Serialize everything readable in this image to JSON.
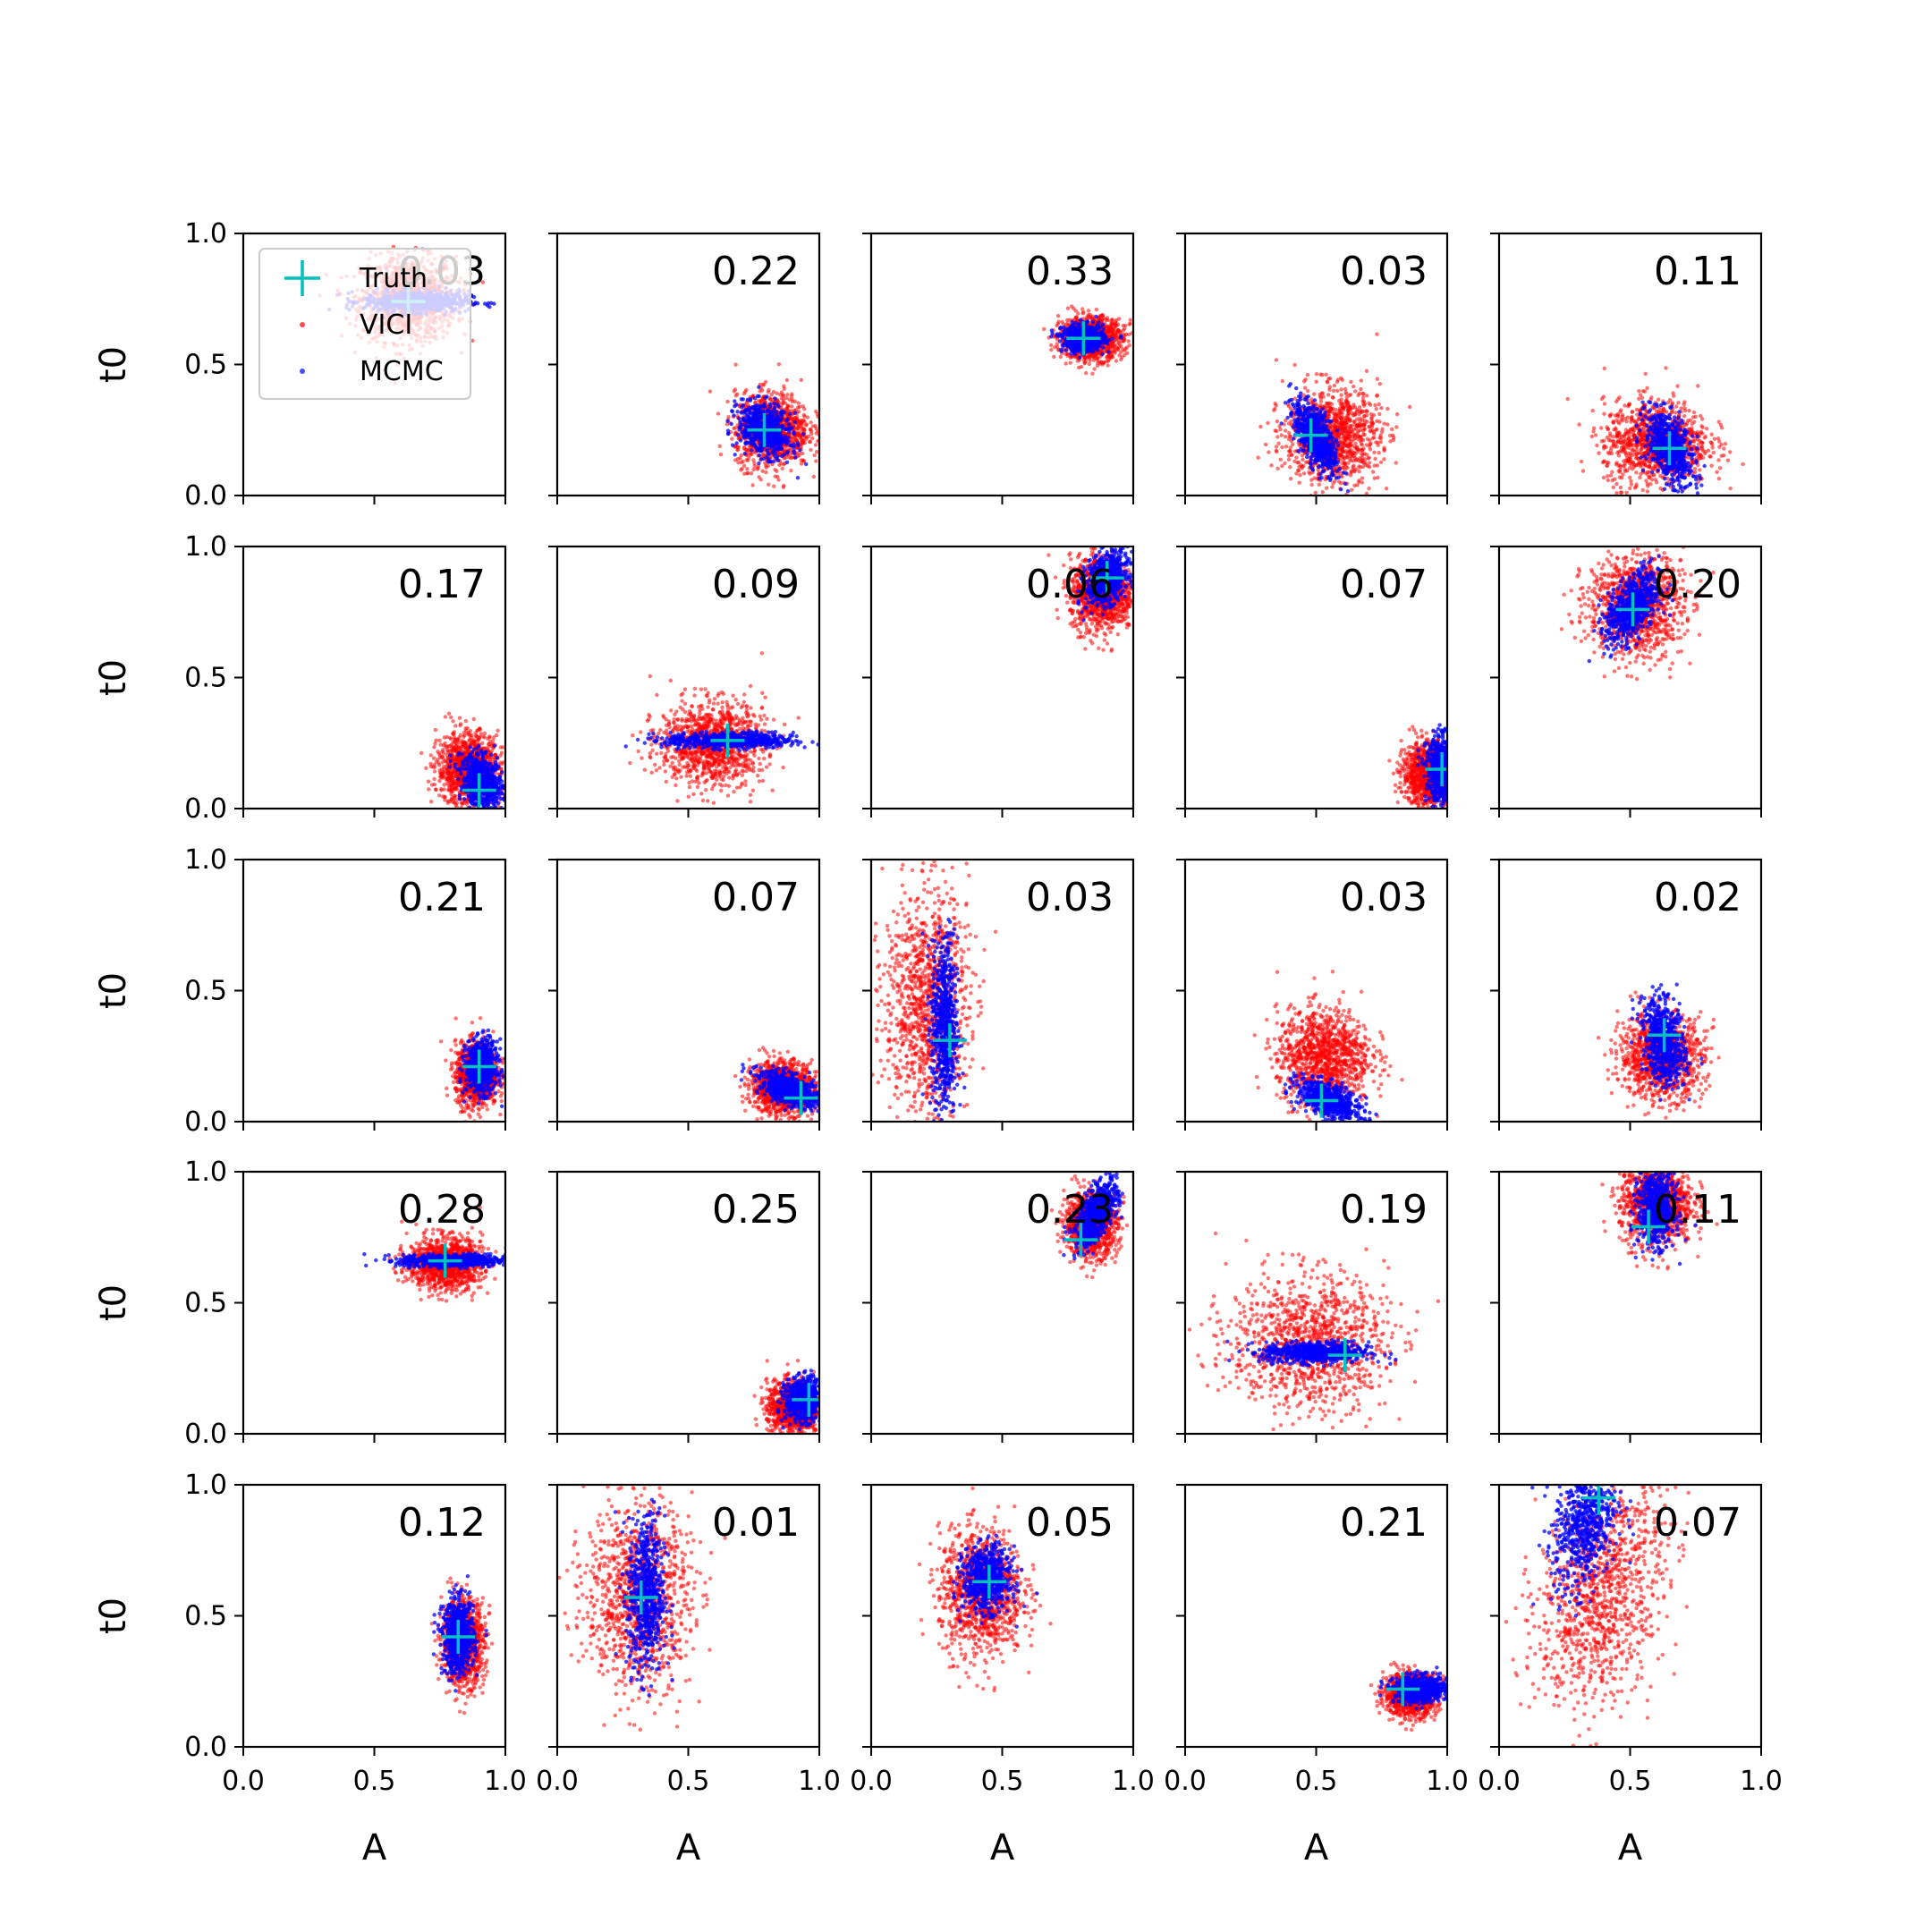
{
  "chart_data": {
    "type": "scatter",
    "layout": "5x5 grid of small-multiple scatter panels",
    "xlabel": "A",
    "ylabel": "t0",
    "xlim": [
      0.0,
      1.0
    ],
    "ylim": [
      0.0,
      1.0
    ],
    "xticks": [
      "0.0",
      "0.5",
      "1.0"
    ],
    "yticks": [
      "0.0",
      "0.5",
      "1.0"
    ],
    "legend": {
      "placement": "top-left (first panel)",
      "entries": [
        {
          "label": "Truth",
          "marker": "plus",
          "color": "#00bfbf"
        },
        {
          "label": "VICI",
          "marker": "dot",
          "color": "#ff0000"
        },
        {
          "label": "MCMC",
          "marker": "dot",
          "color": "#0000ff"
        }
      ]
    },
    "colors": {
      "vici": "#ff0000",
      "mcmc": "#0000ff",
      "truth": "#00bfbf"
    },
    "panels": [
      {
        "kl": "0.03",
        "truth": [
          0.63,
          0.74
        ],
        "vici": {
          "cx": 0.63,
          "cy": 0.75,
          "sx": 0.09,
          "sy": 0.08,
          "rho": 0.0
        },
        "mcmc": {
          "cx": 0.66,
          "cy": 0.74,
          "sx": 0.1,
          "sy": 0.02,
          "rho": 0.0
        }
      },
      {
        "kl": "0.22",
        "truth": [
          0.79,
          0.25
        ],
        "vici": {
          "cx": 0.82,
          "cy": 0.25,
          "sx": 0.07,
          "sy": 0.07,
          "rho": 0.0
        },
        "mcmc": {
          "cx": 0.79,
          "cy": 0.25,
          "sx": 0.05,
          "sy": 0.05,
          "rho": -0.3
        }
      },
      {
        "kl": "0.33",
        "truth": [
          0.81,
          0.6
        ],
        "vici": {
          "cx": 0.84,
          "cy": 0.6,
          "sx": 0.06,
          "sy": 0.04,
          "rho": 0.0
        },
        "mcmc": {
          "cx": 0.81,
          "cy": 0.6,
          "sx": 0.04,
          "sy": 0.025,
          "rho": 0.0
        }
      },
      {
        "kl": "0.03",
        "truth": [
          0.48,
          0.23
        ],
        "vici": {
          "cx": 0.56,
          "cy": 0.23,
          "sx": 0.09,
          "sy": 0.09,
          "rho": 0.0
        },
        "mcmc": {
          "cx": 0.5,
          "cy": 0.22,
          "sx": 0.04,
          "sy": 0.07,
          "rho": -0.6
        }
      },
      {
        "kl": "0.11",
        "truth": [
          0.65,
          0.18
        ],
        "vici": {
          "cx": 0.6,
          "cy": 0.2,
          "sx": 0.1,
          "sy": 0.08,
          "rho": 0.0
        },
        "mcmc": {
          "cx": 0.65,
          "cy": 0.18,
          "sx": 0.045,
          "sy": 0.07,
          "rho": -0.5
        }
      },
      {
        "kl": "0.17",
        "truth": [
          0.9,
          0.07
        ],
        "vici": {
          "cx": 0.86,
          "cy": 0.15,
          "sx": 0.06,
          "sy": 0.07,
          "rho": 0.0
        },
        "mcmc": {
          "cx": 0.91,
          "cy": 0.1,
          "sx": 0.04,
          "sy": 0.05,
          "rho": -0.3
        }
      },
      {
        "kl": "0.09",
        "truth": [
          0.65,
          0.26
        ],
        "vici": {
          "cx": 0.59,
          "cy": 0.25,
          "sx": 0.1,
          "sy": 0.08,
          "rho": 0.0
        },
        "mcmc": {
          "cx": 0.66,
          "cy": 0.26,
          "sx": 0.12,
          "sy": 0.015,
          "rho": 0.0
        }
      },
      {
        "kl": "0.06",
        "truth": [
          0.9,
          0.88
        ],
        "vici": {
          "cx": 0.88,
          "cy": 0.82,
          "sx": 0.06,
          "sy": 0.07,
          "rho": 0.0
        },
        "mcmc": {
          "cx": 0.9,
          "cy": 0.88,
          "sx": 0.04,
          "sy": 0.05,
          "rho": 0.3
        }
      },
      {
        "kl": "0.07",
        "truth": [
          0.98,
          0.15
        ],
        "vici": {
          "cx": 0.93,
          "cy": 0.13,
          "sx": 0.05,
          "sy": 0.06,
          "rho": 0.0
        },
        "mcmc": {
          "cx": 0.98,
          "cy": 0.15,
          "sx": 0.03,
          "sy": 0.06,
          "rho": 0.0
        }
      },
      {
        "kl": "0.20",
        "truth": [
          0.51,
          0.76
        ],
        "vici": {
          "cx": 0.52,
          "cy": 0.78,
          "sx": 0.09,
          "sy": 0.1,
          "rho": 0.0
        },
        "mcmc": {
          "cx": 0.51,
          "cy": 0.77,
          "sx": 0.05,
          "sy": 0.07,
          "rho": 0.5
        }
      },
      {
        "kl": "0.21",
        "truth": [
          0.9,
          0.21
        ],
        "vici": {
          "cx": 0.89,
          "cy": 0.18,
          "sx": 0.04,
          "sy": 0.06,
          "rho": 0.0
        },
        "mcmc": {
          "cx": 0.91,
          "cy": 0.21,
          "sx": 0.03,
          "sy": 0.05,
          "rho": 0.0
        }
      },
      {
        "kl": "0.07",
        "truth": [
          0.93,
          0.09
        ],
        "vici": {
          "cx": 0.86,
          "cy": 0.13,
          "sx": 0.06,
          "sy": 0.05,
          "rho": 0.0
        },
        "mcmc": {
          "cx": 0.89,
          "cy": 0.12,
          "sx": 0.06,
          "sy": 0.035,
          "rho": -0.6
        }
      },
      {
        "kl": "0.03",
        "truth": [
          0.3,
          0.31
        ],
        "vici": {
          "cx": 0.21,
          "cy": 0.46,
          "sx": 0.08,
          "sy": 0.22,
          "rho": 0.0
        },
        "mcmc": {
          "cx": 0.28,
          "cy": 0.36,
          "sx": 0.025,
          "sy": 0.17,
          "rho": 0.0
        }
      },
      {
        "kl": "0.03",
        "truth": [
          0.52,
          0.08
        ],
        "vici": {
          "cx": 0.53,
          "cy": 0.25,
          "sx": 0.09,
          "sy": 0.09,
          "rho": 0.0
        },
        "mcmc": {
          "cx": 0.55,
          "cy": 0.08,
          "sx": 0.06,
          "sy": 0.04,
          "rho": -0.6
        }
      },
      {
        "kl": "0.02",
        "truth": [
          0.63,
          0.33
        ],
        "vici": {
          "cx": 0.62,
          "cy": 0.25,
          "sx": 0.08,
          "sy": 0.08,
          "rho": 0.0
        },
        "mcmc": {
          "cx": 0.63,
          "cy": 0.3,
          "sx": 0.04,
          "sy": 0.08,
          "rho": -0.3
        }
      },
      {
        "kl": "0.28",
        "truth": [
          0.77,
          0.66
        ],
        "vici": {
          "cx": 0.77,
          "cy": 0.65,
          "sx": 0.07,
          "sy": 0.05,
          "rho": 0.0
        },
        "mcmc": {
          "cx": 0.8,
          "cy": 0.66,
          "sx": 0.1,
          "sy": 0.012,
          "rho": 0.0
        }
      },
      {
        "kl": "0.25",
        "truth": [
          0.96,
          0.13
        ],
        "vici": {
          "cx": 0.9,
          "cy": 0.1,
          "sx": 0.05,
          "sy": 0.05,
          "rho": 0.0
        },
        "mcmc": {
          "cx": 0.94,
          "cy": 0.13,
          "sx": 0.035,
          "sy": 0.04,
          "rho": 0.0
        }
      },
      {
        "kl": "0.23",
        "truth": [
          0.8,
          0.74
        ],
        "vici": {
          "cx": 0.84,
          "cy": 0.8,
          "sx": 0.05,
          "sy": 0.06,
          "rho": 0.0
        },
        "mcmc": {
          "cx": 0.86,
          "cy": 0.84,
          "sx": 0.04,
          "sy": 0.06,
          "rho": 0.6
        }
      },
      {
        "kl": "0.19",
        "truth": [
          0.61,
          0.3
        ],
        "vici": {
          "cx": 0.47,
          "cy": 0.35,
          "sx": 0.15,
          "sy": 0.13,
          "rho": 0.0
        },
        "mcmc": {
          "cx": 0.5,
          "cy": 0.31,
          "sx": 0.1,
          "sy": 0.02,
          "rho": 0.0
        }
      },
      {
        "kl": "0.11",
        "truth": [
          0.57,
          0.79
        ],
        "vici": {
          "cx": 0.6,
          "cy": 0.88,
          "sx": 0.07,
          "sy": 0.08,
          "rho": 0.0
        },
        "mcmc": {
          "cx": 0.6,
          "cy": 0.86,
          "sx": 0.035,
          "sy": 0.07,
          "rho": 0.0
        }
      },
      {
        "kl": "0.12",
        "truth": [
          0.82,
          0.42
        ],
        "vici": {
          "cx": 0.84,
          "cy": 0.4,
          "sx": 0.04,
          "sy": 0.08,
          "rho": 0.0
        },
        "mcmc": {
          "cx": 0.82,
          "cy": 0.42,
          "sx": 0.03,
          "sy": 0.07,
          "rho": 0.0
        }
      },
      {
        "kl": "0.01",
        "truth": [
          0.32,
          0.57
        ],
        "vici": {
          "cx": 0.31,
          "cy": 0.58,
          "sx": 0.1,
          "sy": 0.18,
          "rho": 0.0
        },
        "mcmc": {
          "cx": 0.34,
          "cy": 0.58,
          "sx": 0.035,
          "sy": 0.15,
          "rho": 0.0
        }
      },
      {
        "kl": "0.05",
        "truth": [
          0.45,
          0.63
        ],
        "vici": {
          "cx": 0.42,
          "cy": 0.59,
          "sx": 0.08,
          "sy": 0.12,
          "rho": 0.0
        },
        "mcmc": {
          "cx": 0.44,
          "cy": 0.64,
          "sx": 0.045,
          "sy": 0.06,
          "rho": 0.0
        }
      },
      {
        "kl": "0.21",
        "truth": [
          0.83,
          0.22
        ],
        "vici": {
          "cx": 0.86,
          "cy": 0.2,
          "sx": 0.05,
          "sy": 0.04,
          "rho": 0.0
        },
        "mcmc": {
          "cx": 0.9,
          "cy": 0.22,
          "sx": 0.05,
          "sy": 0.025,
          "rho": 0.0
        }
      },
      {
        "kl": "0.07",
        "truth": [
          0.38,
          0.95
        ],
        "vici": {
          "cx": 0.39,
          "cy": 0.6,
          "sx": 0.12,
          "sy": 0.22,
          "rho": 0.3
        },
        "mcmc": {
          "cx": 0.33,
          "cy": 0.86,
          "sx": 0.06,
          "sy": 0.13,
          "rho": 0.3
        }
      }
    ]
  }
}
